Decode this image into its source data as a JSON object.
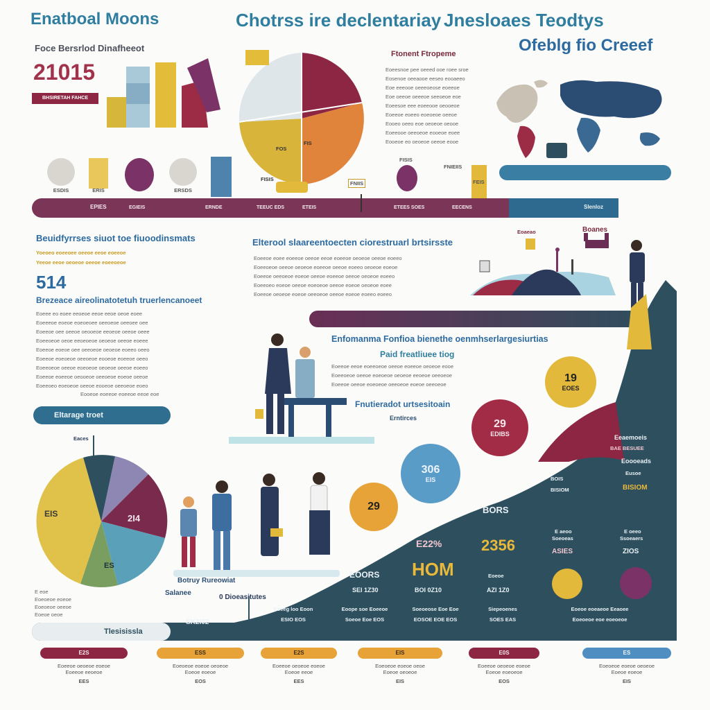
{
  "header": {
    "left_title": "Enatboal Moons",
    "center_title": "Chotrss ire declentariay",
    "right_title_1": "Jnesloaes Teodtys",
    "right_title_2": "Ofeblg fio Creeef"
  },
  "top_left": {
    "subtitle": "Foce Bersrlod Dinafheeot",
    "big_number": "21015",
    "red_label": "BHSIRETAH FAHCE"
  },
  "icons_row": {
    "labels": [
      "ESDIS",
      "ERIS",
      "ERSDS"
    ]
  },
  "pie_top": {
    "label_left": "FOS",
    "label_right": "FIS",
    "label_bottom": "FISIS"
  },
  "article_top": {
    "heading": "Ftonent Ftropeme",
    "lines": [
      "Eoeesnoe pee oeeed ooe roee sroe",
      "Eosenoe oeeaooe eeseo eooaeeo",
      "Eoe eeeooe oeeeoeose eoeeoe",
      "Eoe oeeoe oeeeoe seeoeoe eoe",
      "Eoeesoe eee eoeeooe oeooeoe",
      "Eoeeoe eoeeo eoeoeoe oeeoe",
      "Eooeo oeeo eoe oeoeoe oeooe",
      "Eoeeooe oeeoeoe eooeoe eoee",
      "Eooeoe eo oeoeoe oeeoe eooe"
    ]
  },
  "timeline_top": {
    "labels": [
      "EPIES",
      "EGIEIS",
      "ERNDE",
      "TEEUC EDS",
      "ETEIS",
      "ETEES SOES",
      "EECENS",
      "Slenloz"
    ],
    "mark_labels": [
      "FNIEIIS",
      "FNIIS",
      "FEIS",
      "FISIS"
    ]
  },
  "mid_left": {
    "heading": "Beuidfyrrses siuot toe fiuoodinsmats",
    "yellow_lines": [
      "Yoeoeo eoeeoee oeeoe eeoe eoeeoe",
      "Yeeoe eeoe oeoeoe oeeoe eoeeoeoe"
    ],
    "big_number": "514",
    "sub_heading": "Brezeace aireolinatotetuh truerlencanoeet",
    "lines": [
      "Eoeee eo eoee eeoeoe eeoe eeoe oeoe eoee",
      "Eoeeeoe eoeoe eoeoeoee oeeoeoe oeeoee oee",
      "Eoeeoe oee oeeoe oeooeoe eeoeoe oeeoe oeee",
      "Eoeeoeoe oeoe eeoeoeoe oeoeoe oeeoe eoeee",
      "Eoeeoe eoeoe oee oeeoeoe oeoeoe eoeeo oeeo",
      "Eoeeoe eoeoeoe oeeoeoe eooeoe eoeeoe oeeo",
      "Eoeeoeoe oeeoe eoeoeoe oeoeoe oeeoe eoeeo",
      "Eoeeoe eoeeoe oeooeoe oeeoeoe eoeoe oeeoe",
      "Eoeeoeo eoeoeoe oeeoe eooeoe oeeoeoe eoeo"
    ],
    "tail_line": "Eooeoe eoeeoe eoeeoe eeoe eoe",
    "pill_label": "Eltarage troet"
  },
  "mid_center": {
    "heading": "Elterool slaareentoecten ciorestruarl brtsirsste",
    "lines": [
      "Eoeeoe eoee eoeeoe oeeoe eeoe eoeeoe oeoeoe oeeoe eoeeo",
      "Eoeeoeoe oeeoe oeoeoe eoeeoe oeeoe eoeeo oeoeoe eoeoe",
      "Eoeeoe oeeoeoe eoeoe oeeoe eoeeoe oeeoe oeoeoe eoeeo",
      "Eoeeoeo eoeoe oeeoe eoeoeoe oeeoe eoeoe oeoeoe eoee",
      "Eoeeoe oeoeoe eoeoe oeeoeoe oeeoe eoeoe eoeeo eoeeo"
    ]
  },
  "mid_right": {
    "boards_label": "Boanes",
    "small_label": "Eoaeao"
  },
  "center_block": {
    "heading": "Enfomanma Fonfioa bienethe oenmhserlargesiurtias",
    "sub_heading": "Paid freatliuee tiog",
    "lines": [
      "Eoeeoe eeoe eoeeoeoe oeeoe eoeeoe oeoeoe eooe",
      "Eoeeoeoe oeeoe eoeoeoe oeoeoe eeoeoe oeeoeoe",
      "Eoeeoe oeeoe eoeoeoe oeeoeoe eoeoe oeeoeoe"
    ],
    "sub_heading_2": "Fnutieradot urtsesitoain",
    "sub_label": "Erntirces"
  },
  "bubbles": [
    {
      "top": "19",
      "bottom": "EOES"
    },
    {
      "top": "29",
      "bottom": "EDIBS"
    },
    {
      "top": "306",
      "bottom": "EIS"
    },
    {
      "top": "29",
      "bottom": ""
    }
  ],
  "right_stats": {
    "label_1": "Eeaemoeis",
    "label_1b": "BAE BESUEE",
    "label_2": "Eoooeads",
    "label_2b": "Eusoe",
    "label_3": "BOIS",
    "label_3b": "BISIOM",
    "bors": "BORS",
    "col_a_1": "E aeoo",
    "col_a_2": "Soeoeas",
    "col_b_1": "E oeeo",
    "col_b_2": "Ssoeaers",
    "number_a": "2356",
    "number_a_sub": "ASIES",
    "number_b_sub": "ZIOS",
    "p_label": "E22%",
    "hom": "HOM",
    "eoors": "EOORS",
    "se_label": "SEI 1Z30",
    "bo_label": "BOI 0Z10",
    "az_label": "AZI 1Z0",
    "e_label": "Eoeoe"
  },
  "pie_bottom": {
    "label_top": "Eaces",
    "label_left": "EIS",
    "label_right": "2I4",
    "label_bottom": "ES"
  },
  "bottom_left": {
    "lines": [
      "E eoe",
      "Eoeoeoe eoeoe",
      "Eoeoeoe oeeoe",
      "Eoeoe oeoe"
    ],
    "label_1": "Botruy Rureowiat",
    "label_2": "Salanee",
    "label_3": "0 Dioeasitutes"
  },
  "bottom_row": {
    "left_pill": "Tlesisissla",
    "sk_label": "SK2I02",
    "col_labels": [
      [
        "Eoeeg loo Eoon",
        "ESIO EOS"
      ],
      [
        "Eoope soe Eoeeoe",
        "Soeoe Eoe EOS"
      ],
      [
        "Soeoeose Eoe Eoe",
        "EOSOE EOE EOS"
      ],
      [
        "Siepeoenes",
        "SOES EAS"
      ],
      [
        "Eoeoe eoeaeoe Eeaoee",
        "Eoeoeoe eoe eoeoeoe"
      ]
    ]
  },
  "footer": {
    "items": [
      {
        "pill": "E2S",
        "lines": [
          "Eoeeoe oeoeoe eoeoe",
          "Eoeeoe eeoeoe"
        ],
        "tag": "EES"
      },
      {
        "pill": "ESS",
        "lines": [
          "Eoeoeoe eoeoe oeoeoe",
          "Eoeoe eoeoe"
        ],
        "tag": "EOS"
      },
      {
        "pill": "E2S",
        "lines": [
          "Eoeeoe oeoeoe eoeoe",
          "Eoeoe eeoe"
        ],
        "tag": "EES"
      },
      {
        "pill": "EIS",
        "lines": [
          "Eoeoeoe eoeoe oeoe",
          "Eoeoe oeoeoe"
        ],
        "tag": "EIS"
      },
      {
        "pill": "E0S",
        "lines": [
          "Eoeeoe oeoeoe eoeoe",
          "Eoeoe eoeoeoe"
        ],
        "tag": "EOS"
      },
      {
        "pill": "ES",
        "lines": [
          "Eoeoeoe eoeoe oeoeoe",
          "Eoeoe eoeoe"
        ],
        "tag": "EIS"
      }
    ]
  },
  "colors": {
    "teal": "#2f7ea0",
    "navy": "#2b4d73",
    "crimson": "#8d2643",
    "mustard": "#e2b93a",
    "plum": "#7a3067",
    "orange": "#e0843c",
    "slate": "#2e4f5e"
  }
}
